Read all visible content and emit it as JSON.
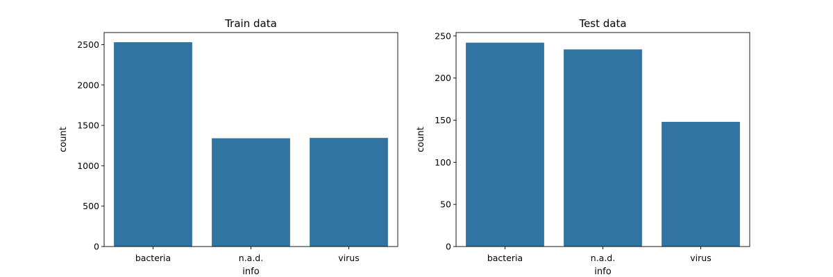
{
  "chart_data": [
    {
      "type": "bar",
      "title": "Train data",
      "xlabel": "info",
      "ylabel": "count",
      "categories": [
        "bacteria",
        "n.a.d.",
        "virus"
      ],
      "values": [
        2530,
        1341,
        1345
      ],
      "ylim": [
        0,
        2650
      ],
      "yticks": [
        0,
        500,
        1000,
        1500,
        2000,
        2500
      ],
      "grid": false,
      "bar_color": "#3274a1"
    },
    {
      "type": "bar",
      "title": "Test data",
      "xlabel": "info",
      "ylabel": "count",
      "categories": [
        "bacteria",
        "n.a.d.",
        "virus"
      ],
      "values": [
        242,
        234,
        148
      ],
      "ylim": [
        0,
        254
      ],
      "yticks": [
        0,
        50,
        100,
        150,
        200,
        250
      ],
      "grid": false,
      "bar_color": "#3274a1"
    }
  ]
}
